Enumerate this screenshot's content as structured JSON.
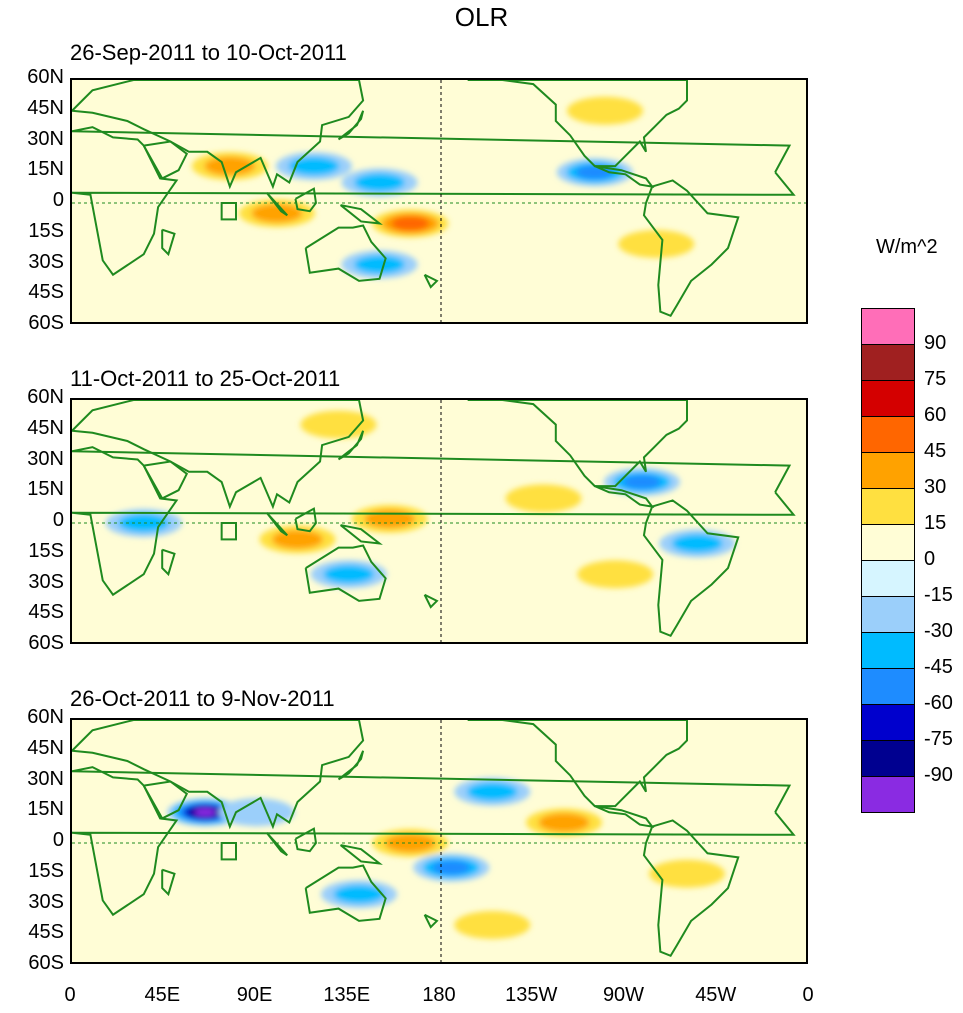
{
  "title": "OLR",
  "units": "W/m^2",
  "panels": [
    {
      "period": "26-Sep-2011 to 10-Oct-2011",
      "anomalies": [
        {
          "lon": 77,
          "lat": 18,
          "value": 30
        },
        {
          "lon": 165,
          "lat": -10,
          "value": 45
        },
        {
          "lon": 100,
          "lat": -5,
          "value": 30
        },
        {
          "lon": 118,
          "lat": 18,
          "value": -30
        },
        {
          "lon": 150,
          "lat": 10,
          "value": -30
        },
        {
          "lon": 150,
          "lat": -30,
          "value": -30
        },
        {
          "lon": 255,
          "lat": 15,
          "value": -45
        },
        {
          "lon": 260,
          "lat": 45,
          "value": 15
        },
        {
          "lon": 285,
          "lat": -20,
          "value": 15
        }
      ]
    },
    {
      "period": "11-Oct-2011 to 25-Oct-2011",
      "anomalies": [
        {
          "lon": 155,
          "lat": 2,
          "value": 30
        },
        {
          "lon": 110,
          "lat": -8,
          "value": 30
        },
        {
          "lon": 130,
          "lat": 48,
          "value": 15
        },
        {
          "lon": 230,
          "lat": 12,
          "value": 15
        },
        {
          "lon": 265,
          "lat": -25,
          "value": 15
        },
        {
          "lon": 278,
          "lat": 20,
          "value": -45
        },
        {
          "lon": 305,
          "lat": -10,
          "value": -30
        },
        {
          "lon": 135,
          "lat": -25,
          "value": -30
        },
        {
          "lon": 35,
          "lat": 0,
          "value": -30
        }
      ]
    },
    {
      "period": "26-Oct-2011 to 9-Nov-2011",
      "anomalies": [
        {
          "lon": 65,
          "lat": 15,
          "value": -90
        },
        {
          "lon": 90,
          "lat": 15,
          "value": -15
        },
        {
          "lon": 165,
          "lat": 0,
          "value": 30
        },
        {
          "lon": 140,
          "lat": -25,
          "value": -30
        },
        {
          "lon": 185,
          "lat": -12,
          "value": -45
        },
        {
          "lon": 205,
          "lat": 25,
          "value": -30
        },
        {
          "lon": 240,
          "lat": 10,
          "value": 30
        },
        {
          "lon": 300,
          "lat": -15,
          "value": 15
        },
        {
          "lon": 205,
          "lat": -40,
          "value": 15
        }
      ]
    }
  ],
  "lat_labels": [
    "60N",
    "45N",
    "30N",
    "15N",
    "0",
    "15S",
    "30S",
    "45S",
    "60S"
  ],
  "lon_labels": [
    "0",
    "45E",
    "90E",
    "135E",
    "180",
    "135W",
    "90W",
    "45W",
    "0"
  ],
  "colorbar": {
    "colors": [
      "#ff6eb8",
      "#a02020",
      "#d40000",
      "#ff6600",
      "#ffa200",
      "#ffe040",
      "#fffdd6",
      "#d6f5ff",
      "#9bcffa",
      "#00bbff",
      "#1e8cff",
      "#0000cd",
      "#000090",
      "#8a2be2"
    ],
    "labels": [
      "90",
      "75",
      "60",
      "45",
      "30",
      "15",
      "0",
      "-15",
      "-30",
      "-45",
      "-60",
      "-75",
      "-90"
    ]
  }
}
